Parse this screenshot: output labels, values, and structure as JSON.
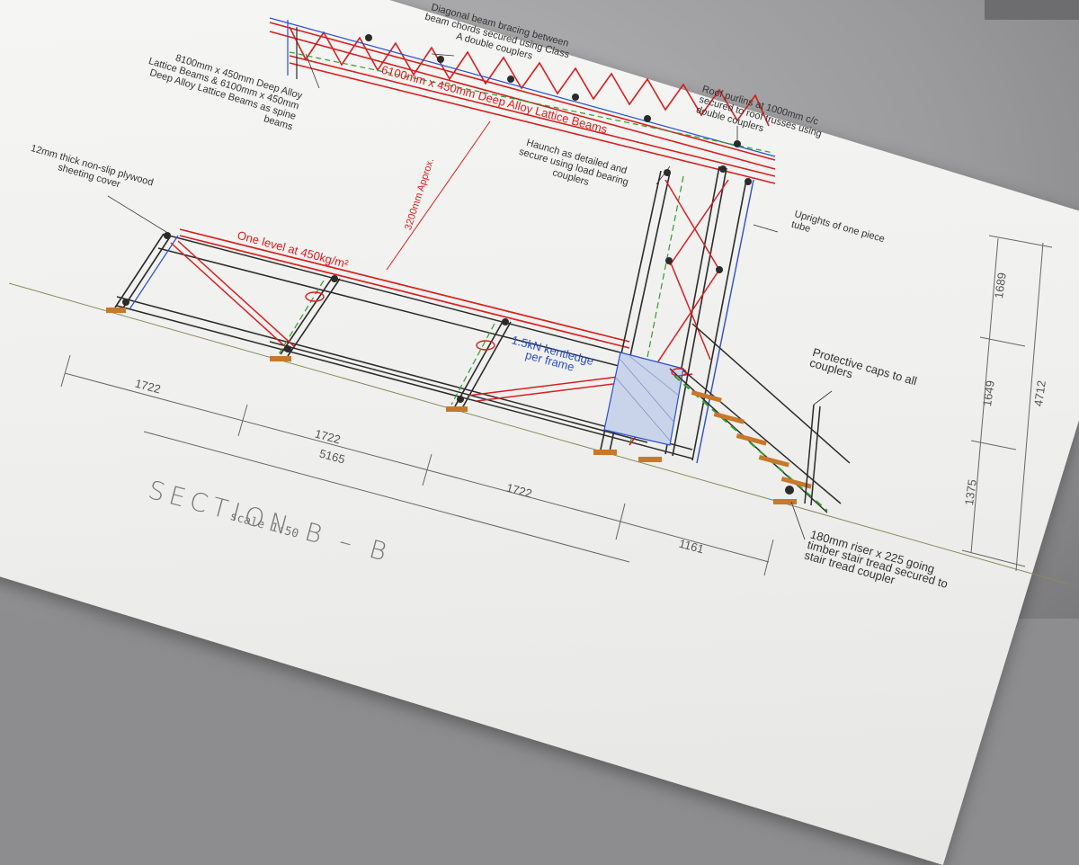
{
  "drawing": {
    "section_title": "SECTION  B  –  B",
    "scale": "scale 1:50"
  },
  "annotations": {
    "diagonal_bracing": [
      "Diagonal beam bracing between",
      "beam chords secured using Class",
      "A double couplers"
    ],
    "lattice_beams": [
      "8100mm x 450mm Deep Alloy",
      "Lattice Beams & 6100mm x 450mm",
      "Deep Alloy Lattice Beams as spine",
      "beams"
    ],
    "beam_label": "6100mm x 450mm Deep Alloy Lattice Beams",
    "roof_purlins": [
      "Roof purlins at 1000mm c/c",
      "secured to roof trusses using",
      "double couplers"
    ],
    "haunch": [
      "Haunch as detailed and",
      "secure using load bearing",
      "couplers"
    ],
    "plywood": [
      "12mm thick non-slip plywood",
      "sheeting cover"
    ],
    "height": "3200mm Approx.",
    "uprights": [
      "Uprights of one piece",
      "tube"
    ],
    "level": "One level at 450kg/m²",
    "kentledge": [
      "1.5kN kentledge",
      "per frame"
    ],
    "caps": [
      "Protective caps to all",
      "couplers"
    ],
    "riser": [
      "180mm riser x 225 going",
      "timber stair tread secured to",
      "stair tread coupler"
    ]
  },
  "dimensions": {
    "bay_a": "1722",
    "bay_b": "1722",
    "total": "5165",
    "bay_c": "1722",
    "stair": "1161",
    "h_top": "1689",
    "h_mid": "1649",
    "h_bottom": "1375",
    "h_total": "4712"
  },
  "colors": {
    "beam": "#d42020",
    "upright": "#2a4fd0",
    "bracing": "#2e9d2e",
    "timber": "#c8782a",
    "structure": "#2b2b2b"
  }
}
